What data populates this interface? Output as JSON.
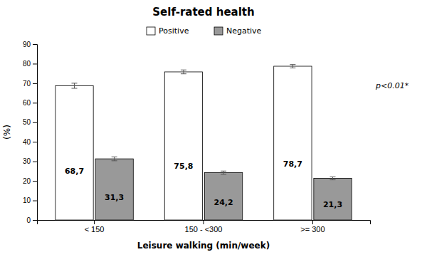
{
  "chart_data": {
    "type": "bar",
    "title": "Self-rated health",
    "xlabel": "Leisure walking (min/week)",
    "ylabel": "(%)",
    "categories": [
      "< 150",
      "150 - <300",
      ">= 300"
    ],
    "series": [
      {
        "name": "Positive",
        "color": "#ffffff",
        "values": [
          68.7,
          75.8,
          78.7
        ],
        "value_labels": [
          "68,7",
          "75,8",
          "78,7"
        ],
        "errors": [
          1.3,
          1.0,
          0.85
        ]
      },
      {
        "name": "Negative",
        "color": "#999999",
        "values": [
          31.3,
          24.2,
          21.3
        ],
        "value_labels": [
          "31,3",
          "24,2",
          "21,3"
        ],
        "errors": [
          1.0,
          0.85,
          0.75
        ]
      }
    ],
    "ylim": [
      0,
      90
    ],
    "yticks": [
      0,
      10,
      20,
      30,
      40,
      50,
      60,
      70,
      80,
      90
    ],
    "data_labels": true,
    "legend": "top",
    "annotations": [
      "p<0.01*"
    ]
  }
}
